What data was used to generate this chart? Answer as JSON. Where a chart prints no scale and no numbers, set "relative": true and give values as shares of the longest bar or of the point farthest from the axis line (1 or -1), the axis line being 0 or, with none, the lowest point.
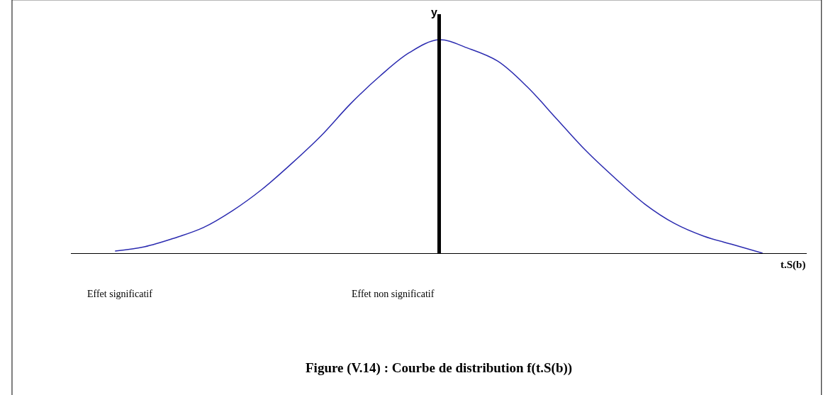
{
  "chart_data": {
    "type": "line",
    "relative": true,
    "title": "Figure (V.14) : Courbe de distribution f(t.S(b))",
    "xlabel": "t.S(b)",
    "ylabel": "y",
    "categories": [
      null,
      null,
      null,
      null,
      null,
      null,
      null,
      null,
      null,
      null,
      null,
      null,
      null,
      null,
      null,
      null,
      null,
      null,
      null,
      null,
      null,
      null,
      null
    ],
    "series": [
      {
        "color": "#2b2bb0",
        "values": [
          0.01,
          0.03,
          0.07,
          0.12,
          0.2,
          0.3,
          0.42,
          0.55,
          0.7,
          0.83,
          0.94,
          1.0,
          0.96,
          0.9,
          0.78,
          0.63,
          0.48,
          0.35,
          0.23,
          0.14,
          0.08,
          0.04,
          0.0
        ]
      }
    ],
    "annotations": [
      "Effet significatif",
      "Effet non significatif"
    ],
    "legend": false,
    "marker": "none",
    "line_style": "solid"
  }
}
